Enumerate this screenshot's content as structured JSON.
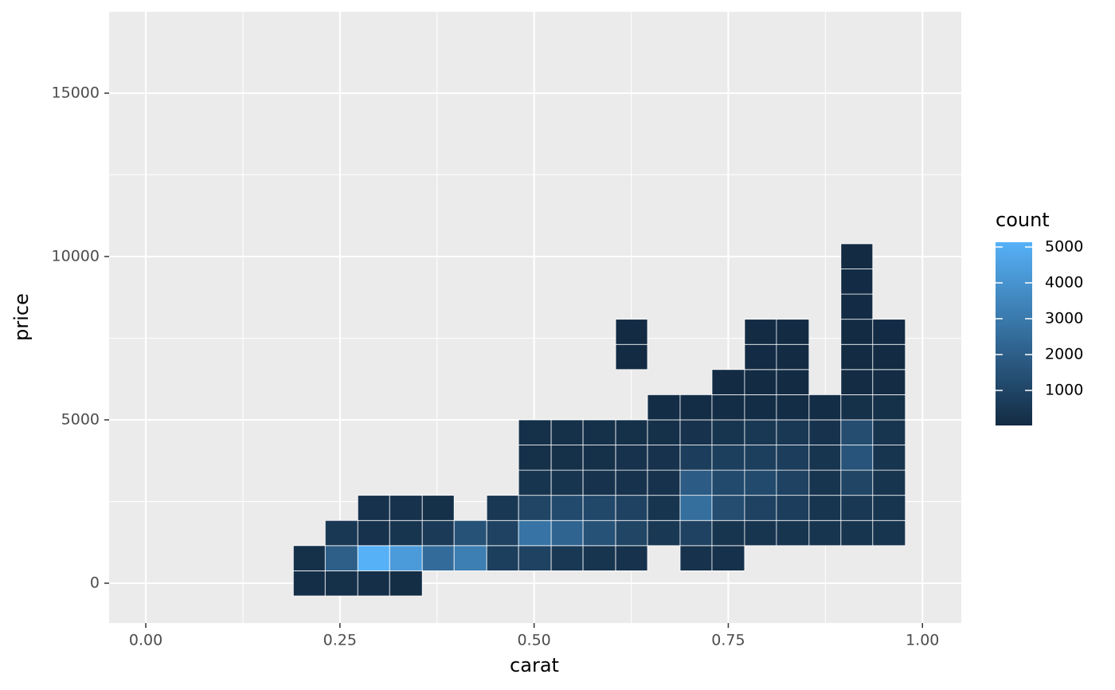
{
  "chart_data": {
    "type": "bin2d",
    "x_label": "carat",
    "y_label": "price",
    "legend_title": "count",
    "xbins": [
      0.19,
      0.231,
      0.273,
      0.314,
      0.356,
      0.397,
      0.439,
      0.48,
      0.522,
      0.563,
      0.605,
      0.646,
      0.688,
      0.729,
      0.771,
      0.812,
      0.854,
      0.895,
      0.936,
      0.978
    ],
    "ybins": [
      -390,
      380,
      1150,
      1920,
      2690,
      3460,
      4230,
      5000,
      5770,
      6540,
      7310,
      8080,
      8850,
      9620,
      10390
    ],
    "values": [
      [
        150,
        200,
        180,
        120,
        null,
        null,
        null,
        null,
        null,
        null,
        null,
        null,
        null,
        null,
        null,
        null,
        null,
        null,
        null
      ],
      [
        200,
        2000,
        5133,
        4300,
        2500,
        3200,
        800,
        900,
        500,
        400,
        300,
        null,
        300,
        250,
        null,
        null,
        null,
        null,
        null
      ],
      [
        null,
        500,
        300,
        400,
        600,
        1500,
        900,
        2800,
        2200,
        1500,
        1000,
        500,
        900,
        400,
        400,
        400,
        400,
        400,
        400
      ],
      [
        null,
        null,
        300,
        300,
        200,
        null,
        500,
        1000,
        1200,
        1100,
        900,
        400,
        2600,
        1300,
        900,
        700,
        400,
        500,
        400
      ],
      [
        null,
        null,
        null,
        null,
        null,
        null,
        null,
        400,
        400,
        300,
        300,
        300,
        1900,
        1200,
        1200,
        900,
        400,
        1000,
        400
      ],
      [
        null,
        null,
        null,
        null,
        null,
        null,
        null,
        200,
        200,
        200,
        300,
        300,
        700,
        800,
        800,
        700,
        400,
        1600,
        400
      ],
      [
        null,
        null,
        null,
        null,
        null,
        null,
        null,
        200,
        200,
        200,
        200,
        200,
        300,
        400,
        500,
        500,
        300,
        1300,
        400
      ],
      [
        null,
        null,
        null,
        null,
        null,
        null,
        null,
        null,
        null,
        null,
        null,
        100,
        100,
        100,
        100,
        100,
        100,
        200,
        200
      ],
      [
        null,
        null,
        null,
        null,
        null,
        null,
        null,
        null,
        null,
        null,
        null,
        null,
        null,
        50,
        60,
        60,
        null,
        80,
        80
      ],
      [
        null,
        null,
        null,
        null,
        null,
        null,
        null,
        null,
        null,
        null,
        30,
        null,
        null,
        null,
        40,
        50,
        null,
        60,
        50
      ],
      [
        null,
        null,
        null,
        null,
        null,
        null,
        null,
        null,
        null,
        null,
        30,
        null,
        null,
        null,
        30,
        30,
        null,
        50,
        40
      ],
      [
        null,
        null,
        null,
        null,
        null,
        null,
        null,
        null,
        null,
        null,
        null,
        null,
        null,
        null,
        null,
        null,
        null,
        40,
        null
      ],
      [
        null,
        null,
        null,
        null,
        null,
        null,
        null,
        null,
        null,
        null,
        null,
        null,
        null,
        null,
        null,
        null,
        null,
        40,
        null
      ],
      [
        null,
        null,
        null,
        null,
        null,
        null,
        null,
        null,
        null,
        null,
        null,
        null,
        null,
        null,
        null,
        null,
        null,
        22,
        null
      ]
    ],
    "xlim": [
      -0.0472,
      1.05
    ],
    "ylim": [
      -1220,
      17510
    ],
    "xticks": [
      {
        "value": 0,
        "label": "0.00"
      },
      {
        "value": 0.25,
        "label": "0.25"
      },
      {
        "value": 0.5,
        "label": "0.50"
      },
      {
        "value": 0.75,
        "label": "0.75"
      },
      {
        "value": 1,
        "label": "1.00"
      }
    ],
    "yticks": [
      0,
      5000,
      10000,
      15000
    ],
    "grid": true,
    "color_low": "#132B43",
    "color_high": "#56B1F7",
    "clim": [
      22,
      5133
    ],
    "cticks": [
      1000,
      2000,
      3000,
      4000,
      5000
    ]
  }
}
